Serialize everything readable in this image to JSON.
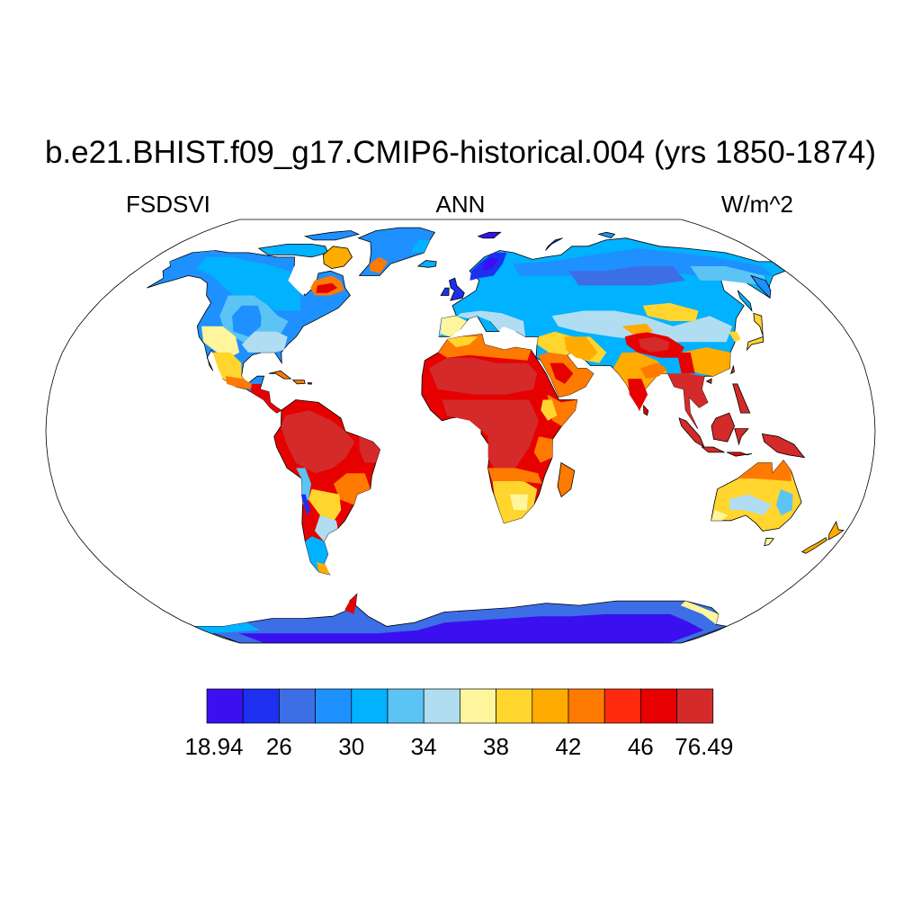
{
  "title": "b.e21.BHIST.f09_g17.CMIP6-historical.004 (yrs 1850-1874)",
  "subtitle_left": "FSDSVI",
  "subtitle_center": "ANN",
  "subtitle_right": "W/m^2",
  "colors": {
    "background": "#ffffff",
    "ocean": "#ffffff",
    "coastline": "#000000"
  },
  "chart_data": {
    "type": "heatmap",
    "projection": "robinson",
    "variable": "FSDSVI",
    "season": "ANN",
    "units": "W/m^2",
    "colorbar": {
      "orientation": "horizontal",
      "levels": [
        18.94,
        26,
        28,
        30,
        32,
        34,
        36,
        38,
        40,
        42,
        44,
        46,
        48,
        76.49
      ],
      "tick_labels": [
        "18.94",
        "26",
        "30",
        "34",
        "38",
        "42",
        "46",
        "76.49"
      ],
      "colors": [
        "#3a10f0",
        "#1d30f0",
        "#3c6ee6",
        "#1e90ff",
        "#00b2ff",
        "#5cc4f4",
        "#b0ddf2",
        "#fff59c",
        "#ffd52e",
        "#ffab00",
        "#ff7a00",
        "#ff2a0e",
        "#e60000",
        "#d42a2a"
      ]
    },
    "regions": [
      {
        "name": "Amazon",
        "value_class": "46-76.49"
      },
      {
        "name": "Sahel and Central Africa",
        "value_class": "46-76.49"
      },
      {
        "name": "Maritime Continent",
        "value_class": "46-76.49"
      },
      {
        "name": "Tibetan Plateau",
        "value_class": "46-76.49"
      },
      {
        "name": "Antarctic interior",
        "value_class": "18.94-26"
      },
      {
        "name": "Northern Eurasia",
        "value_class": "30-34"
      },
      {
        "name": "Northern North America",
        "value_class": "30-34"
      },
      {
        "name": "Australia interior",
        "value_class": "36-38"
      }
    ]
  }
}
